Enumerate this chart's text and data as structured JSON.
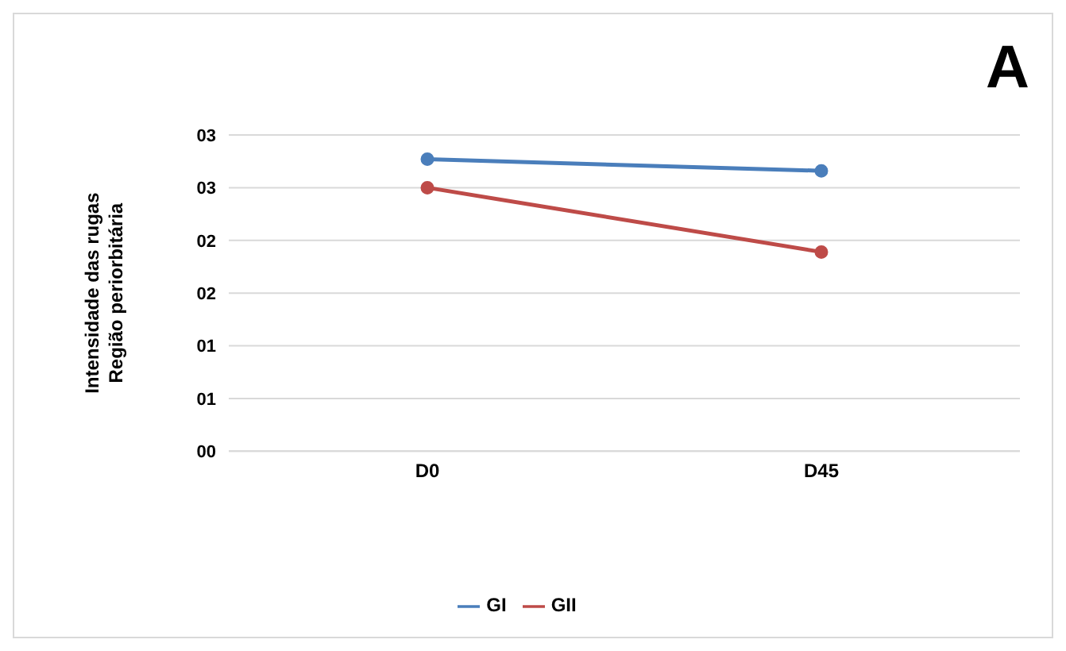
{
  "chart_data": {
    "type": "line",
    "title": "A",
    "ylabel": "Intensidade das rugas\nRegião periorbitária",
    "categories": [
      "D0",
      "D45"
    ],
    "series": [
      {
        "name": "GI",
        "color": "#4a7ebb",
        "values": [
          2.77,
          2.66
        ]
      },
      {
        "name": "GII",
        "color": "#be4b48",
        "values": [
          2.5,
          1.89
        ]
      }
    ],
    "ylim": [
      0,
      3
    ],
    "yticks": [
      {
        "value": 0,
        "label": "00"
      },
      {
        "value": 0.5,
        "label": "01"
      },
      {
        "value": 1,
        "label": "01"
      },
      {
        "value": 1.5,
        "label": "02"
      },
      {
        "value": 2,
        "label": "02"
      },
      {
        "value": 2.5,
        "label": "03"
      },
      {
        "value": 3,
        "label": "03"
      }
    ],
    "grid": "y",
    "legend": "bottom",
    "marker": "circle",
    "line_style": "solid"
  }
}
